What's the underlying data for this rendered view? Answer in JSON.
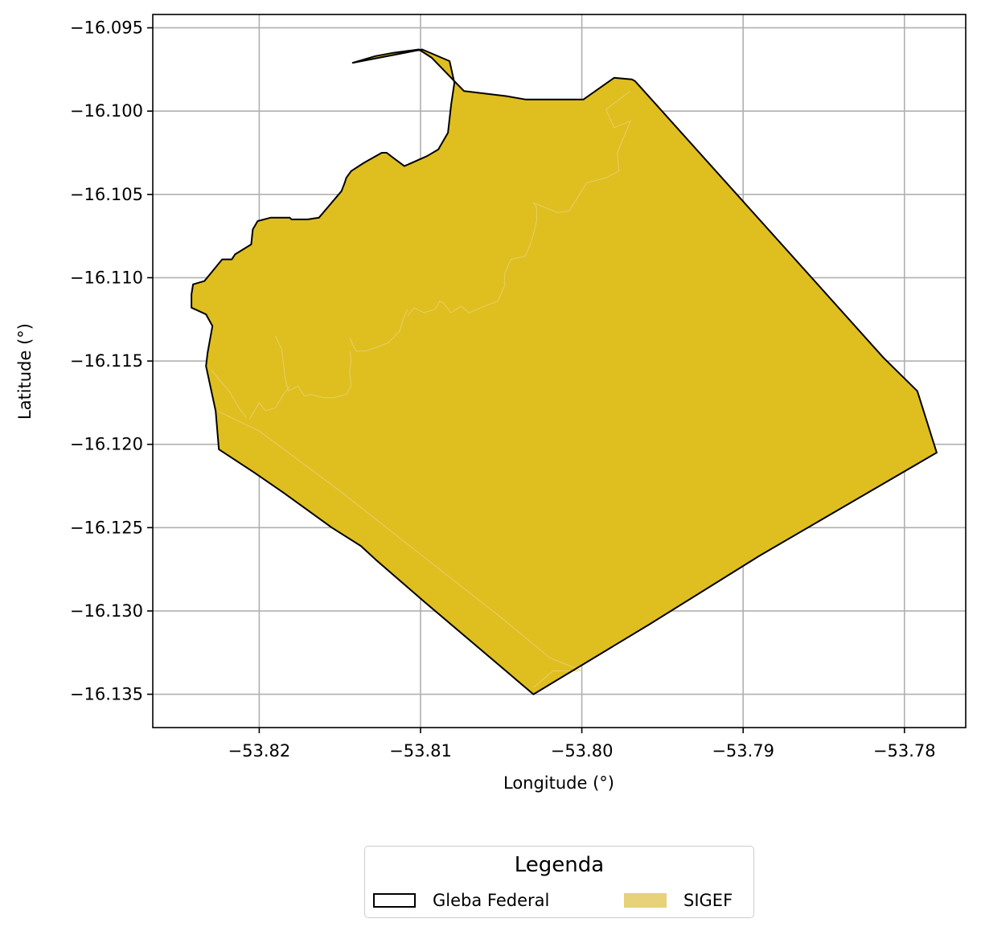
{
  "chart_data": {
    "type": "map",
    "xlabel": "Longitude (°)",
    "ylabel": "Latitude (°)",
    "xlim": [
      -53.8266,
      -53.7762
    ],
    "ylim": [
      -16.137,
      -16.0942
    ],
    "xticks": [
      -53.82,
      -53.81,
      -53.8,
      -53.79,
      -53.78
    ],
    "xtick_labels": [
      "−53.82",
      "−53.81",
      "−53.80",
      "−53.79",
      "−53.78"
    ],
    "yticks": [
      -16.095,
      -16.1,
      -16.105,
      -16.11,
      -16.115,
      -16.12,
      -16.125,
      -16.13,
      -16.135
    ],
    "ytick_labels": [
      "−16.095",
      "−16.100",
      "−16.105",
      "−16.110",
      "−16.115",
      "−16.120",
      "−16.125",
      "−16.130",
      "−16.135"
    ],
    "grid": true,
    "layers": [
      {
        "name": "Gleba Federal",
        "style": "outline",
        "stroke": "#000000",
        "fill": "none",
        "polygon": [
          [
            -53.8142,
            -16.0971
          ],
          [
            -53.8099,
            -16.0963
          ],
          [
            -53.8082,
            -16.097
          ],
          [
            -53.8079,
            -16.0983
          ],
          [
            -53.8081,
            -16.0996
          ],
          [
            -53.8083,
            -16.1013
          ],
          [
            -53.8089,
            -16.1023
          ],
          [
            -53.8096,
            -16.1027
          ],
          [
            -53.811,
            -16.1033
          ],
          [
            -53.8117,
            -16.1028
          ],
          [
            -53.8121,
            -16.1025
          ],
          [
            -53.8124,
            -16.1025
          ],
          [
            -53.8135,
            -16.1031
          ],
          [
            -53.8143,
            -16.1036
          ],
          [
            -53.8146,
            -16.104
          ],
          [
            -53.8147,
            -16.1043
          ],
          [
            -53.8149,
            -16.1048
          ],
          [
            -53.8163,
            -16.1064
          ],
          [
            -53.817,
            -16.1065
          ],
          [
            -53.8173,
            -16.1065
          ],
          [
            -53.818,
            -16.1065
          ],
          [
            -53.8181,
            -16.1064
          ],
          [
            -53.8193,
            -16.1064
          ],
          [
            -53.8201,
            -16.1066
          ],
          [
            -53.8204,
            -16.1071
          ],
          [
            -53.8205,
            -16.108
          ],
          [
            -53.8215,
            -16.1086
          ],
          [
            -53.8217,
            -16.1089
          ],
          [
            -53.8223,
            -16.1089
          ],
          [
            -53.8234,
            -16.1102
          ],
          [
            -53.8241,
            -16.1104
          ],
          [
            -53.8242,
            -16.111
          ],
          [
            -53.8242,
            -16.1118
          ],
          [
            -53.8233,
            -16.1122
          ],
          [
            -53.8229,
            -16.1129
          ],
          [
            -53.8232,
            -16.1145
          ],
          [
            -53.8233,
            -16.1153
          ],
          [
            -53.8227,
            -16.118
          ],
          [
            -53.8225,
            -16.1203
          ],
          [
            -53.8203,
            -16.1217
          ],
          [
            -53.8185,
            -16.1229
          ],
          [
            -53.8155,
            -16.125
          ],
          [
            -53.8137,
            -16.1261
          ],
          [
            -53.8128,
            -16.1269
          ],
          [
            -53.8097,
            -16.1295
          ],
          [
            -53.803,
            -16.135
          ],
          [
            -53.7958,
            -16.1308
          ],
          [
            -53.789,
            -16.1267
          ],
          [
            -53.778,
            -16.1205
          ],
          [
            -53.7792,
            -16.1168
          ],
          [
            -53.7813,
            -16.1148
          ],
          [
            -53.7967,
            -16.0982
          ],
          [
            -53.7969,
            -16.0981
          ],
          [
            -53.798,
            -16.098
          ],
          [
            -53.7999,
            -16.0993
          ],
          [
            -53.8035,
            -16.0993
          ],
          [
            -53.8047,
            -16.0991
          ],
          [
            -53.8073,
            -16.0988
          ],
          [
            -53.8093,
            -16.0968
          ],
          [
            -53.8101,
            -16.0963
          ],
          [
            -53.8117,
            -16.0965
          ],
          [
            -53.8128,
            -16.0967
          ],
          [
            -53.8142,
            -16.0971
          ]
        ]
      },
      {
        "name": "SIGEF",
        "style": "fill",
        "fill": "#dfbe20",
        "legend_fill": "#e7d179",
        "polygon": [
          [
            -53.8142,
            -16.0971
          ],
          [
            -53.8099,
            -16.0963
          ],
          [
            -53.8082,
            -16.097
          ],
          [
            -53.8079,
            -16.0983
          ],
          [
            -53.8081,
            -16.0996
          ],
          [
            -53.8083,
            -16.1013
          ],
          [
            -53.8089,
            -16.1023
          ],
          [
            -53.8096,
            -16.1027
          ],
          [
            -53.811,
            -16.1033
          ],
          [
            -53.8117,
            -16.1028
          ],
          [
            -53.8121,
            -16.1025
          ],
          [
            -53.8124,
            -16.1025
          ],
          [
            -53.8135,
            -16.1031
          ],
          [
            -53.8143,
            -16.1036
          ],
          [
            -53.8146,
            -16.104
          ],
          [
            -53.8147,
            -16.1043
          ],
          [
            -53.8149,
            -16.1048
          ],
          [
            -53.8163,
            -16.1064
          ],
          [
            -53.817,
            -16.1065
          ],
          [
            -53.8173,
            -16.1065
          ],
          [
            -53.818,
            -16.1065
          ],
          [
            -53.8181,
            -16.1064
          ],
          [
            -53.8193,
            -16.1064
          ],
          [
            -53.8201,
            -16.1066
          ],
          [
            -53.8204,
            -16.1071
          ],
          [
            -53.8205,
            -16.108
          ],
          [
            -53.8215,
            -16.1086
          ],
          [
            -53.8217,
            -16.1089
          ],
          [
            -53.8223,
            -16.1089
          ],
          [
            -53.8234,
            -16.1102
          ],
          [
            -53.8241,
            -16.1104
          ],
          [
            -53.8242,
            -16.111
          ],
          [
            -53.8242,
            -16.1118
          ],
          [
            -53.8233,
            -16.1122
          ],
          [
            -53.8229,
            -16.1129
          ],
          [
            -53.8232,
            -16.1145
          ],
          [
            -53.8233,
            -16.1153
          ],
          [
            -53.8227,
            -16.118
          ],
          [
            -53.8225,
            -16.1203
          ],
          [
            -53.8203,
            -16.1217
          ],
          [
            -53.8185,
            -16.1229
          ],
          [
            -53.8155,
            -16.125
          ],
          [
            -53.8137,
            -16.1261
          ],
          [
            -53.8128,
            -16.1269
          ],
          [
            -53.8097,
            -16.1295
          ],
          [
            -53.803,
            -16.135
          ],
          [
            -53.7958,
            -16.1308
          ],
          [
            -53.789,
            -16.1267
          ],
          [
            -53.778,
            -16.1205
          ],
          [
            -53.7792,
            -16.1168
          ],
          [
            -53.7813,
            -16.1148
          ],
          [
            -53.7967,
            -16.0982
          ],
          [
            -53.7969,
            -16.0981
          ],
          [
            -53.798,
            -16.098
          ],
          [
            -53.7999,
            -16.0993
          ],
          [
            -53.8035,
            -16.0993
          ],
          [
            -53.8047,
            -16.0991
          ],
          [
            -53.8073,
            -16.0988
          ],
          [
            -53.8093,
            -16.0968
          ],
          [
            -53.8101,
            -16.0963
          ],
          [
            -53.8117,
            -16.0965
          ],
          [
            -53.8128,
            -16.0967
          ],
          [
            -53.8142,
            -16.0971
          ]
        ]
      }
    ],
    "parcel_lines": [
      [
        [
          -53.8226,
          -16.118
        ],
        [
          -53.82,
          -16.1192
        ],
        [
          -53.815,
          -16.1228
        ],
        [
          -53.81,
          -16.1266
        ],
        [
          -53.805,
          -16.1304
        ],
        [
          -53.802,
          -16.1328
        ],
        [
          -53.8,
          -16.1336
        ]
      ],
      [
        [
          -53.8002,
          -16.1336
        ],
        [
          -53.8018,
          -16.1336
        ],
        [
          -53.803,
          -16.1346
        ]
      ],
      [
        [
          -53.819,
          -16.1135
        ],
        [
          -53.8186,
          -16.1143
        ],
        [
          -53.8184,
          -16.116
        ],
        [
          -53.8182,
          -16.1168
        ],
        [
          -53.8176,
          -16.1165
        ],
        [
          -53.8172,
          -16.1171
        ],
        [
          -53.8168,
          -16.117
        ],
        [
          -53.816,
          -16.1172
        ],
        [
          -53.8154,
          -16.1172
        ],
        [
          -53.8146,
          -16.117
        ],
        [
          -53.8143,
          -16.1165
        ],
        [
          -53.8144,
          -16.1157
        ],
        [
          -53.8143,
          -16.1149
        ],
        [
          -53.8144,
          -16.1144
        ]
      ],
      [
        [
          -53.8144,
          -16.1136
        ],
        [
          -53.814,
          -16.1144
        ],
        [
          -53.8134,
          -16.1144
        ],
        [
          -53.8128,
          -16.1142
        ],
        [
          -53.812,
          -16.1139
        ],
        [
          -53.8113,
          -16.1132
        ],
        [
          -53.811,
          -16.1123
        ],
        [
          -53.8108,
          -16.1119
        ]
      ],
      [
        [
          -53.8108,
          -16.1123
        ],
        [
          -53.8104,
          -16.1118
        ],
        [
          -53.8098,
          -16.1121
        ],
        [
          -53.8091,
          -16.1119
        ],
        [
          -53.8088,
          -16.1114
        ],
        [
          -53.8086,
          -16.1115
        ],
        [
          -53.8081,
          -16.1121
        ],
        [
          -53.8075,
          -16.1117
        ],
        [
          -53.807,
          -16.1121
        ],
        [
          -53.806,
          -16.1117
        ],
        [
          -53.8052,
          -16.1114
        ],
        [
          -53.8048,
          -16.1105
        ],
        [
          -53.8048,
          -16.1098
        ],
        [
          -53.8044,
          -16.1089
        ],
        [
          -53.8035,
          -16.1087
        ],
        [
          -53.8032,
          -16.108
        ],
        [
          -53.803,
          -16.1074
        ],
        [
          -53.8028,
          -16.1066
        ],
        [
          -53.8028,
          -16.1058
        ],
        [
          -53.803,
          -16.1055
        ],
        [
          -53.8015,
          -16.1061
        ],
        [
          -53.8008,
          -16.106
        ],
        [
          -53.8004,
          -16.1054
        ],
        [
          -53.7997,
          -16.1043
        ],
        [
          -53.7985,
          -16.104
        ],
        [
          -53.7977,
          -16.1036
        ],
        [
          -53.7978,
          -16.1025
        ],
        [
          -53.7972,
          -16.1011
        ],
        [
          -53.797,
          -16.1006
        ],
        [
          -53.798,
          -16.101
        ],
        [
          -53.7985,
          -16.0999
        ],
        [
          -53.797,
          -16.0988
        ]
      ],
      [
        [
          -53.823,
          -16.1155
        ],
        [
          -53.8224,
          -16.1162
        ],
        [
          -53.8218,
          -16.1169
        ],
        [
          -53.8212,
          -16.1179
        ],
        [
          -53.8208,
          -16.1184
        ]
      ],
      [
        [
          -53.8181,
          -16.1165
        ],
        [
          -53.8185,
          -16.117
        ],
        [
          -53.819,
          -16.1178
        ],
        [
          -53.8196,
          -16.118
        ],
        [
          -53.82,
          -16.1175
        ],
        [
          -53.8206,
          -16.1185
        ]
      ]
    ]
  },
  "legend": {
    "title": "Legenda",
    "items": [
      {
        "label": "Gleba Federal",
        "style": "outline"
      },
      {
        "label": "SIGEF",
        "style": "fill"
      }
    ]
  }
}
